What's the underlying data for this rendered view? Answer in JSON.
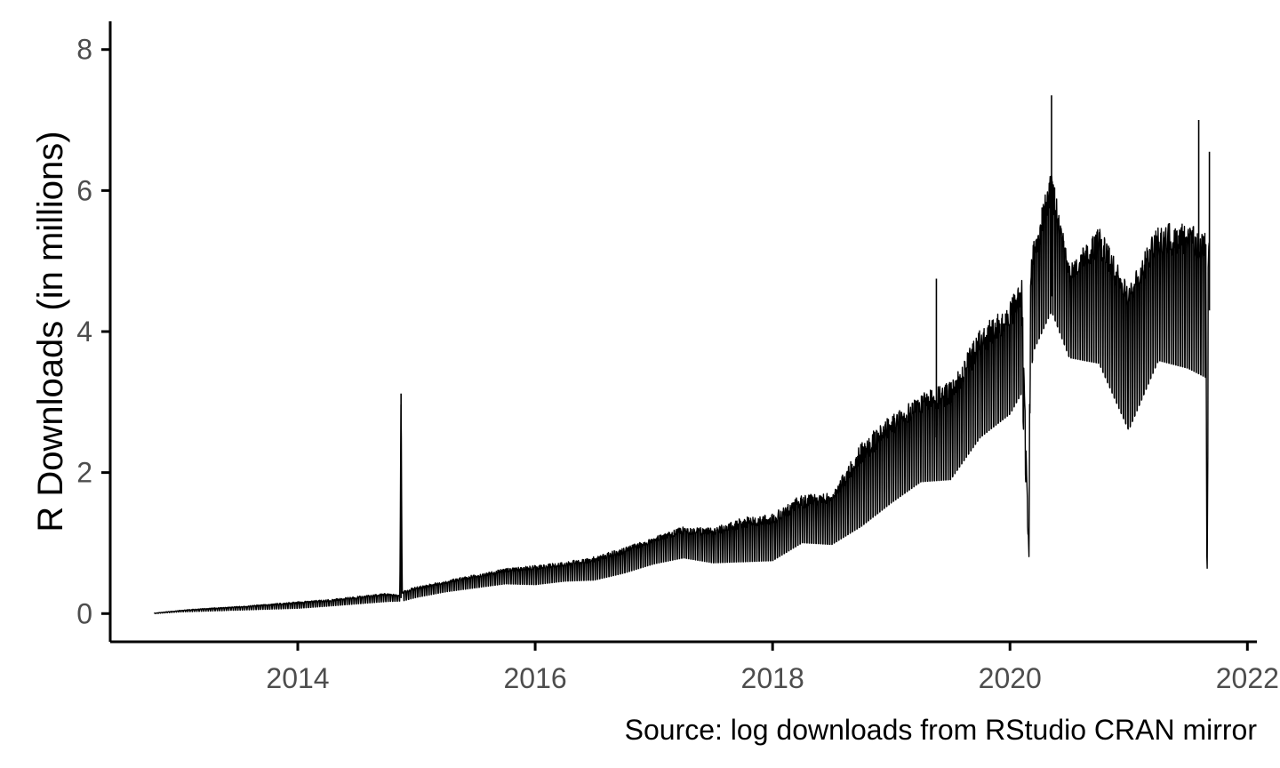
{
  "chart_data": {
    "type": "line",
    "title": "",
    "xlabel": "",
    "ylabel": "R Downloads (in millions)",
    "caption": "Source: log downloads from RStudio CRAN mirror",
    "xlim": [
      2012.42,
      2022.08
    ],
    "ylim": [
      -0.4,
      8.4
    ],
    "x_ticks": [
      2014,
      2016,
      2018,
      2020,
      2022
    ],
    "y_ticks": [
      0,
      2,
      4,
      6,
      8
    ],
    "grid": false,
    "colors": {
      "line": "#000000",
      "axis": "#000000",
      "tick_text": "#4d4d4d"
    },
    "series": [
      {
        "x": [
          2012.79,
          2013.0,
          2013.25,
          2013.5,
          2013.75,
          2014.0,
          2014.25,
          2014.5,
          2014.75,
          2014.86,
          2014.87,
          2014.88,
          2015.0,
          2015.25,
          2015.5,
          2015.75,
          2016.0,
          2016.25,
          2016.5,
          2016.75,
          2017.0,
          2017.25,
          2017.5,
          2017.75,
          2018.0,
          2018.25,
          2018.5,
          2018.75,
          2019.0,
          2019.25,
          2019.5,
          2019.75,
          2020.0,
          2020.1,
          2020.16,
          2020.17,
          2020.2,
          2020.35,
          2020.5,
          2020.75,
          2021.0,
          2021.25,
          2021.5,
          2021.65,
          2021.66,
          2021.67,
          2021.68
        ],
        "y": [
          0.0,
          0.03,
          0.05,
          0.07,
          0.09,
          0.11,
          0.14,
          0.18,
          0.22,
          0.22,
          3.12,
          0.24,
          0.3,
          0.38,
          0.45,
          0.52,
          0.55,
          0.6,
          0.65,
          0.75,
          0.95,
          1.0,
          1.0,
          1.05,
          1.1,
          1.25,
          1.4,
          1.8,
          2.2,
          2.5,
          2.6,
          3.2,
          3.6,
          3.9,
          0.8,
          4.1,
          4.5,
          5.2,
          4.4,
          4.6,
          4.0,
          4.5,
          4.6,
          4.4,
          0.0,
          4.3,
          4.5
        ],
        "upper": [
          0.01,
          0.06,
          0.1,
          0.13,
          0.17,
          0.22,
          0.25,
          0.3,
          0.35,
          0.3,
          3.12,
          0.4,
          0.45,
          0.55,
          0.65,
          0.75,
          0.8,
          0.85,
          0.95,
          1.1,
          1.2,
          1.45,
          1.4,
          1.65,
          1.7,
          2.1,
          2.0,
          3.0,
          3.4,
          3.7,
          3.9,
          4.8,
          5.2,
          5.5,
          0.8,
          5.7,
          6.0,
          7.3,
          5.4,
          6.3,
          5.2,
          6.5,
          6.4,
          6.3,
          0.0,
          6.5,
          6.6
        ],
        "lower": [
          0.0,
          0.02,
          0.03,
          0.04,
          0.05,
          0.06,
          0.09,
          0.12,
          0.15,
          0.16,
          3.12,
          0.15,
          0.2,
          0.28,
          0.33,
          0.38,
          0.35,
          0.4,
          0.4,
          0.5,
          0.6,
          0.7,
          0.6,
          0.6,
          0.6,
          0.9,
          0.8,
          1.0,
          1.3,
          1.6,
          1.6,
          2.2,
          2.5,
          2.8,
          0.8,
          3.0,
          3.4,
          3.9,
          3.3,
          3.1,
          2.0,
          3.2,
          3.0,
          2.9,
          0.0,
          2.9,
          3.1
        ]
      }
    ],
    "spikes": [
      {
        "x": 2014.87,
        "y": 3.12
      },
      {
        "x": 2019.38,
        "y": 4.75
      },
      {
        "x": 2020.17,
        "y": 0.8
      },
      {
        "x": 2020.35,
        "y": 7.35
      },
      {
        "x": 2021.59,
        "y": 7.0
      },
      {
        "x": 2021.67,
        "y": 0.0
      },
      {
        "x": 2021.68,
        "y": 6.55
      }
    ]
  }
}
